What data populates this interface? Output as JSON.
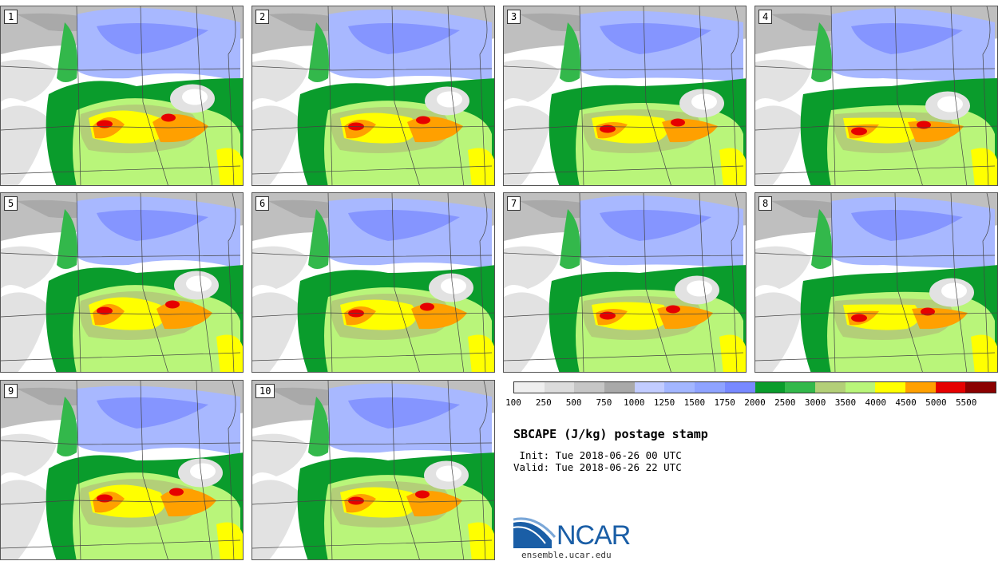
{
  "title": "SBCAPE (J/kg) postage stamp",
  "init_text": " Init: Tue 2018-06-26 00 UTC",
  "valid_text": "Valid: Tue 2018-06-26 22 UTC",
  "logo": {
    "name": "NCAR",
    "url_text": "ensemble.ucar.edu"
  },
  "members": [
    {
      "label": "1"
    },
    {
      "label": "2"
    },
    {
      "label": "3"
    },
    {
      "label": "4"
    },
    {
      "label": "5"
    },
    {
      "label": "6"
    },
    {
      "label": "7"
    },
    {
      "label": "8"
    },
    {
      "label": "9"
    },
    {
      "label": "10"
    }
  ],
  "colorbar": {
    "tick_labels": [
      "100",
      "250",
      "500",
      "750",
      "1000",
      "1250",
      "1500",
      "1750",
      "2000",
      "2500",
      "3000",
      "3500",
      "4000",
      "4500",
      "5000",
      "5500"
    ],
    "colors": [
      "#efefef",
      "#dcdcdc",
      "#c6c6c6",
      "#a9a9a9",
      "#c2ccff",
      "#a3b6ff",
      "#8fa3ff",
      "#7889ff",
      "#0a9c2c",
      "#33b84b",
      "#b3cf78",
      "#b9f57a",
      "#ffff00",
      "#ffa000",
      "#e60000",
      "#8b0000"
    ]
  },
  "map_colors": {
    "land": "#ffffff",
    "lightgray": "#e2e2e2",
    "gray": "#bfbfbf",
    "darkgray": "#a9a9a9",
    "lightblue": "#a8b8ff",
    "blue": "#8595ff",
    "darkblue": "#6f80ff",
    "green": "#0a9c2c",
    "midgreen": "#33b84b",
    "lightgreen": "#b9f57a",
    "olive": "#b3cf78",
    "yellow": "#ffff00",
    "orange": "#ffa000",
    "red": "#e60000",
    "border": "#444444"
  }
}
